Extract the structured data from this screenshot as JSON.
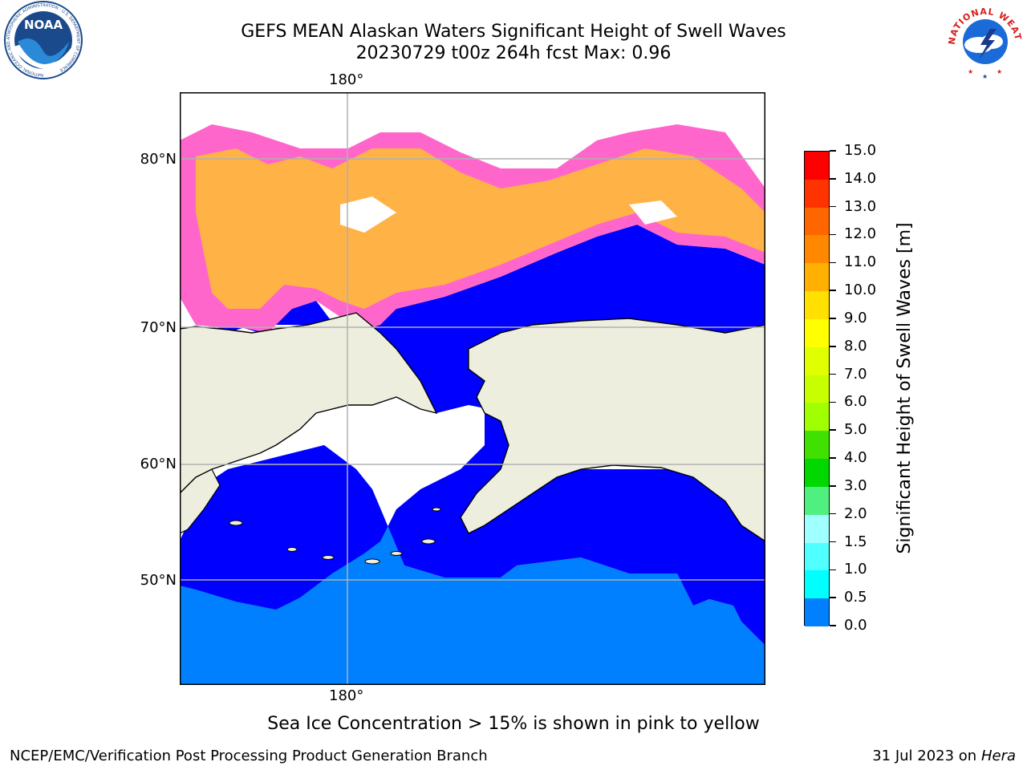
{
  "header": {
    "title_line1": "GEFS MEAN Alaskan Waters Significant Height of Swell Waves",
    "title_line2": "20230729 t00z 264h fcst   Max: 0.96"
  },
  "logos": {
    "left": "NOAA",
    "left_ring": "NATIONAL OCEANIC AND ATMOSPHERIC ADMINISTRATION · U.S. DEPARTMENT OF COMMERCE",
    "right_ring": "NATIONAL WEATHER SERVICE"
  },
  "map": {
    "lon_label_top": "180°",
    "lon_label_bottom": "180°",
    "lat_labels": [
      "80°N",
      "70°N",
      "60°N",
      "50°N"
    ],
    "colors": {
      "land": "#eeeedf",
      "ocean_low": "#0000ff",
      "ocean_mid": "#0080ff",
      "ice_pink": "#ff66cc",
      "ice_orange": "#ffb347",
      "grid": "#b0b0b0"
    }
  },
  "colorbar": {
    "label": "Significant Height of Swell Waves [m]",
    "ticks": [
      "15.0",
      "14.0",
      "13.0",
      "12.0",
      "11.0",
      "10.0",
      "9.0",
      "8.0",
      "7.0",
      "6.0",
      "5.0",
      "4.0",
      "3.0",
      "2.0",
      "1.5",
      "1.0",
      "0.5",
      "0.0"
    ],
    "colors": [
      "#ff0000",
      "#ff3300",
      "#ff6600",
      "#ff8800",
      "#ffb000",
      "#ffe000",
      "#ffff00",
      "#e0ff00",
      "#c8ff00",
      "#a0ff00",
      "#40e000",
      "#00d800",
      "#50f080",
      "#a0ffff",
      "#50ffff",
      "#00ffff",
      "#0080ff",
      "#0000ff"
    ]
  },
  "note": "Sea Ice Concentration > 15% is shown in pink to yellow",
  "footer": {
    "left": "NCEP/EMC/Verification Post Processing Product Generation Branch",
    "right_date": "31 Jul 2023 on ",
    "right_host": "Hera"
  }
}
